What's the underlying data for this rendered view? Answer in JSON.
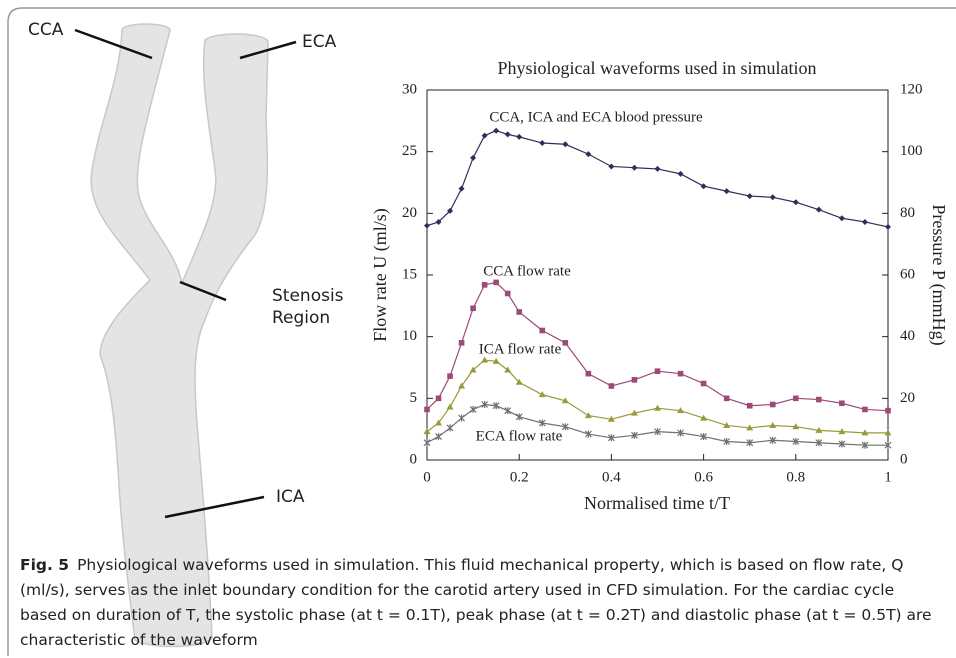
{
  "figure": {
    "labels": [
      "CCA",
      "ECA",
      "Stenosis",
      "Region",
      "ICA"
    ]
  },
  "chart_data": {
    "type": "line",
    "title": "Physiological waveforms used in simulation",
    "xlabel": "Normalised time t/T",
    "ylabel": "Flow rate U (ml/s)",
    "y2label": "Pressure P (mmHg)",
    "xlim": [
      0,
      1
    ],
    "xticks": [
      0,
      0.2,
      0.4,
      0.6,
      0.8,
      1
    ],
    "ylim": [
      0,
      30
    ],
    "yticks": [
      0,
      5,
      10,
      15,
      20,
      25,
      30
    ],
    "y2lim": [
      0,
      120
    ],
    "y2ticks": [
      0,
      20,
      40,
      60,
      80,
      100,
      120
    ],
    "x": [
      0,
      0.025,
      0.05,
      0.075,
      0.1,
      0.125,
      0.15,
      0.175,
      0.2,
      0.25,
      0.3,
      0.35,
      0.4,
      0.45,
      0.5,
      0.55,
      0.6,
      0.65,
      0.7,
      0.75,
      0.8,
      0.85,
      0.9,
      0.95,
      1
    ],
    "series": [
      {
        "name": "CCA, ICA and ECA blood pressure",
        "axis": "y2",
        "color": "#2d2f5a",
        "marker": "diamond",
        "values": [
          76,
          77.2,
          80.8,
          88,
          98,
          105.2,
          106.8,
          105.6,
          104.8,
          102.8,
          102.4,
          99.2,
          95.2,
          94.8,
          94.4,
          92.8,
          88.8,
          87.2,
          85.6,
          85.2,
          83.6,
          81.2,
          78.4,
          77.2,
          75.6
        ]
      },
      {
        "name": "CCA flow rate",
        "color": "#9c4a78",
        "marker": "square",
        "values": [
          4.1,
          5.0,
          6.8,
          9.5,
          12.3,
          14.2,
          14.4,
          13.5,
          12.0,
          10.5,
          9.5,
          7.0,
          6.0,
          6.5,
          7.2,
          7.0,
          6.2,
          5.0,
          4.4,
          4.5,
          5.0,
          4.9,
          4.6,
          4.1,
          4.0
        ]
      },
      {
        "name": "ICA flow rate",
        "color": "#9a9a3a",
        "marker": "triangle",
        "values": [
          2.3,
          3.0,
          4.3,
          6.0,
          7.3,
          8.1,
          8.0,
          7.3,
          6.3,
          5.3,
          4.8,
          3.6,
          3.3,
          3.8,
          4.2,
          4.0,
          3.4,
          2.8,
          2.6,
          2.8,
          2.7,
          2.4,
          2.3,
          2.2,
          2.2
        ]
      },
      {
        "name": "ECA flow rate",
        "color": "#707070",
        "marker": "star",
        "values": [
          1.4,
          1.9,
          2.6,
          3.4,
          4.1,
          4.5,
          4.4,
          4.0,
          3.5,
          3.0,
          2.7,
          2.1,
          1.8,
          2.0,
          2.3,
          2.2,
          1.9,
          1.5,
          1.4,
          1.6,
          1.5,
          1.4,
          1.3,
          1.2,
          1.2
        ]
      }
    ]
  },
  "caption": {
    "label": "Fig. 5",
    "text": "Physiological waveforms used in simulation. This fluid mechanical property, which is based on flow rate, Q (ml/s), serves as the inlet boundary condition for the carotid artery used in CFD simulation. For the cardiac cycle based on duration of T, the systolic phase (at t = 0.1T), peak phase (at t = 0.2T) and diastolic phase (at t = 0.5T) are characteristic of the waveform"
  }
}
